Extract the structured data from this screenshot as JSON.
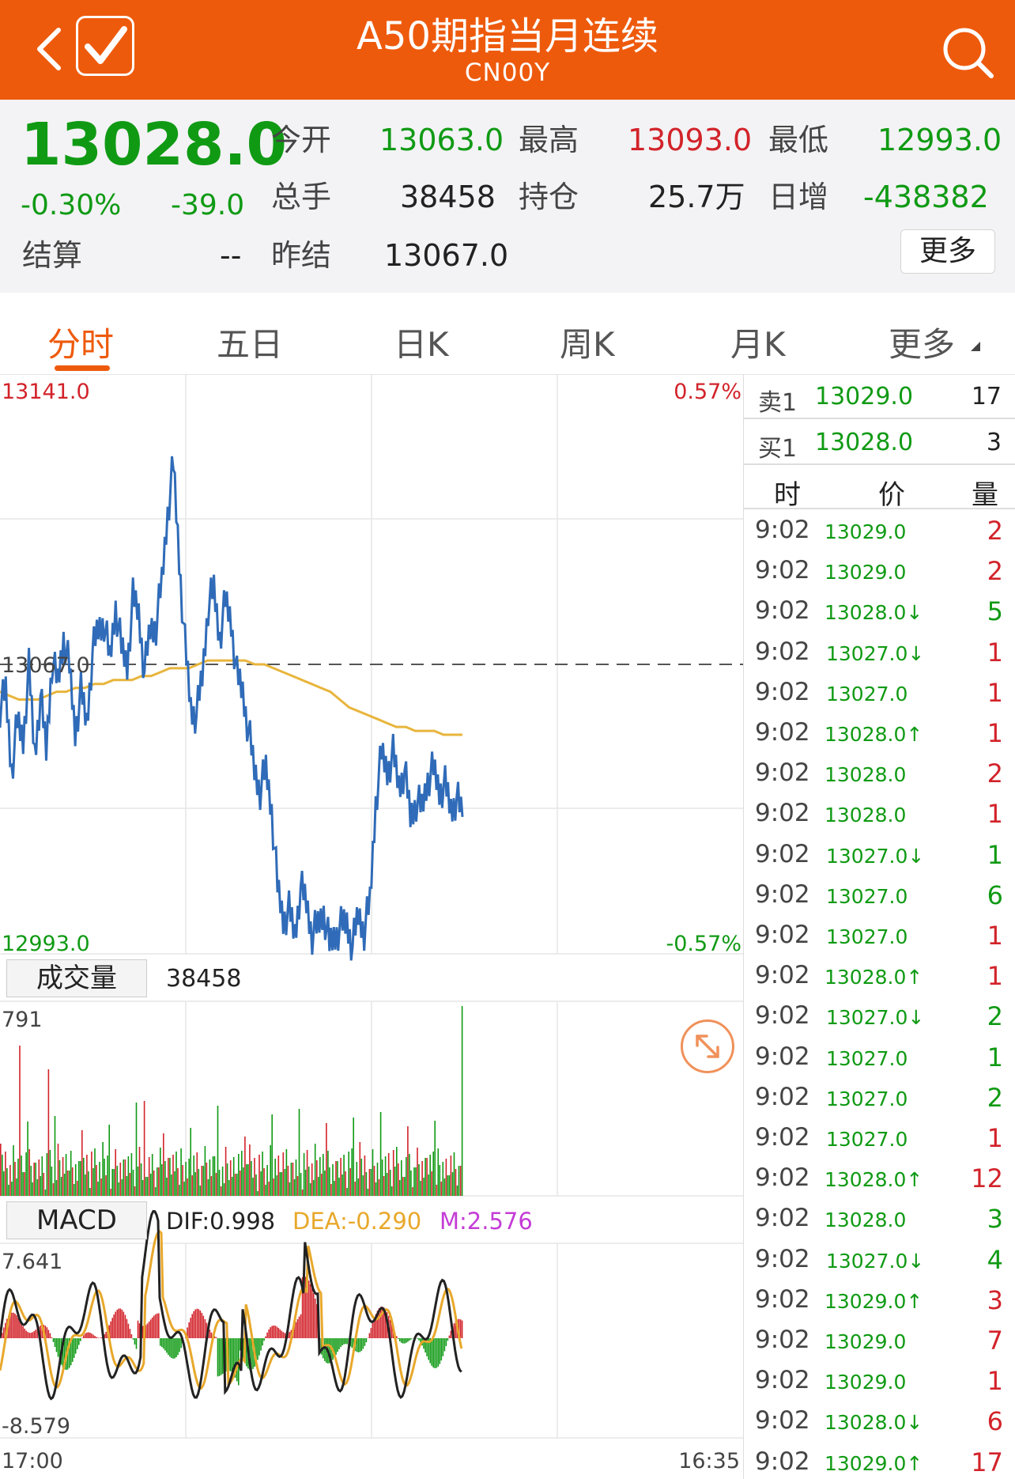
{
  "header": {
    "title": "A50期指当月连续",
    "subtitle": "CN00Y",
    "bg_color": "#ee5a0c"
  },
  "quote": {
    "price": "13028.0",
    "change_pct": "-0.30%",
    "change": "-39.0",
    "settle_label": "结算",
    "settle_value": "--",
    "open_label": "今开",
    "open_value": "13063.0",
    "high_label": "最高",
    "high_value": "13093.0",
    "low_label": "最低",
    "low_value": "12993.0",
    "volume_label": "总手",
    "volume_value": "38458",
    "oi_label": "持仓",
    "oi_value": "25.7万",
    "daily_inc_label": "日增",
    "daily_inc_value": "-438382",
    "prev_settle_label": "昨结",
    "prev_settle_value": "13067.0",
    "more_label": "更多"
  },
  "tabs": [
    {
      "label": "分时",
      "active": true
    },
    {
      "label": "五日",
      "active": false
    },
    {
      "label": "日K",
      "active": false
    },
    {
      "label": "周K",
      "active": false
    },
    {
      "label": "月K",
      "active": false
    },
    {
      "label": "更多",
      "active": false
    }
  ],
  "chart": {
    "price_max": "13141.0",
    "price_min": "12993.0",
    "pct_max": "0.57%",
    "pct_min": "-0.57%",
    "ref_price": "13067.0",
    "vol_label": "成交量",
    "vol_value": "38458",
    "vol_max": "791",
    "macd_label": "MACD",
    "dif": "DIF:0.998",
    "dea": "DEA:-0.290",
    "m": "M:2.576",
    "macd_max": "7.641",
    "macd_min": "-8.579",
    "time_start": "17:00",
    "time_end": "16:35",
    "colors": {
      "price_line": "#2f6bb8",
      "avg_line": "#e8b53c",
      "up": "#d2232a",
      "down": "#109a14",
      "dea": "#e8a82b",
      "m": "#c43cd6"
    }
  },
  "chart_data": {
    "type": "line",
    "y_range": [
      12993.0,
      13141.0
    ],
    "reference": 13067.0,
    "series": [],
    "price": [
      13056,
      13060,
      13040,
      13052,
      13048,
      13066,
      13044,
      13059,
      13045,
      13068,
      13062,
      13074,
      13066,
      13050,
      13060,
      13052,
      13070,
      13076,
      13078,
      13068,
      13082,
      13071,
      13067,
      13084,
      13080,
      13065,
      13076,
      13077,
      13088,
      13106,
      13118,
      13094,
      13072,
      13056,
      13054,
      13064,
      13082,
      13086,
      13074,
      13083,
      13078,
      13064,
      13060,
      13050,
      13040,
      13035,
      13040,
      13030,
      13010,
      13002,
      13004,
      12998,
      13010,
      13006,
      12998,
      13000,
      13004,
      12995,
      12998,
      13000,
      13001,
      12995,
      13003,
      12999,
      13006,
      13032,
      13044,
      13040,
      13044,
      13036,
      13040,
      13028,
      13032,
      13030,
      13038,
      13040,
      13035,
      13036,
      13030,
      13033,
      13028
    ],
    "avg": [
      13060,
      13059,
      13058,
      13058,
      13058,
      13059,
      13060,
      13060,
      13061,
      13061,
      13062,
      13062,
      13063,
      13063,
      13063,
      13064,
      13064,
      13065,
      13066,
      13066,
      13066,
      13067,
      13068,
      13068,
      13068,
      13068,
      13068,
      13067,
      13067,
      13066,
      13065,
      13064,
      13063,
      13062,
      13061,
      13060,
      13058,
      13056,
      13055,
      13054,
      13053,
      13052,
      13051,
      13051,
      13050,
      13050,
      13050,
      13049,
      13049,
      13049
    ],
    "volume_max": 791,
    "macd_range": [
      -8.579,
      7.641
    ]
  },
  "orderbook": {
    "ask_label": "卖1",
    "ask_price": "13029.0",
    "ask_vol": "17",
    "bid_label": "买1",
    "bid_price": "13028.0",
    "bid_vol": "3",
    "col_time": "时",
    "col_price": "价",
    "col_vol": "量"
  },
  "trades": [
    {
      "t": "9:02",
      "p": "13029.0",
      "v": "2",
      "dir": "up"
    },
    {
      "t": "9:02",
      "p": "13029.0",
      "v": "2",
      "dir": "up"
    },
    {
      "t": "9:02",
      "p": "13028.0↓",
      "v": "5",
      "dir": "down"
    },
    {
      "t": "9:02",
      "p": "13027.0↓",
      "v": "1",
      "dir": "up"
    },
    {
      "t": "9:02",
      "p": "13027.0",
      "v": "1",
      "dir": "up"
    },
    {
      "t": "9:02",
      "p": "13028.0↑",
      "v": "1",
      "dir": "up"
    },
    {
      "t": "9:02",
      "p": "13028.0",
      "v": "2",
      "dir": "up"
    },
    {
      "t": "9:02",
      "p": "13028.0",
      "v": "1",
      "dir": "up"
    },
    {
      "t": "9:02",
      "p": "13027.0↓",
      "v": "1",
      "dir": "down"
    },
    {
      "t": "9:02",
      "p": "13027.0",
      "v": "6",
      "dir": "down"
    },
    {
      "t": "9:02",
      "p": "13027.0",
      "v": "1",
      "dir": "up"
    },
    {
      "t": "9:02",
      "p": "13028.0↑",
      "v": "1",
      "dir": "up"
    },
    {
      "t": "9:02",
      "p": "13027.0↓",
      "v": "2",
      "dir": "down"
    },
    {
      "t": "9:02",
      "p": "13027.0",
      "v": "1",
      "dir": "down"
    },
    {
      "t": "9:02",
      "p": "13027.0",
      "v": "2",
      "dir": "down"
    },
    {
      "t": "9:02",
      "p": "13027.0",
      "v": "1",
      "dir": "up"
    },
    {
      "t": "9:02",
      "p": "13028.0↑",
      "v": "12",
      "dir": "up"
    },
    {
      "t": "9:02",
      "p": "13028.0",
      "v": "3",
      "dir": "down"
    },
    {
      "t": "9:02",
      "p": "13027.0↓",
      "v": "4",
      "dir": "down"
    },
    {
      "t": "9:02",
      "p": "13029.0↑",
      "v": "3",
      "dir": "up"
    },
    {
      "t": "9:02",
      "p": "13029.0",
      "v": "7",
      "dir": "up"
    },
    {
      "t": "9:02",
      "p": "13029.0",
      "v": "1",
      "dir": "up"
    },
    {
      "t": "9:02",
      "p": "13028.0↓",
      "v": "6",
      "dir": "up"
    },
    {
      "t": "9:02",
      "p": "13029.0↑",
      "v": "17",
      "dir": "up"
    }
  ]
}
